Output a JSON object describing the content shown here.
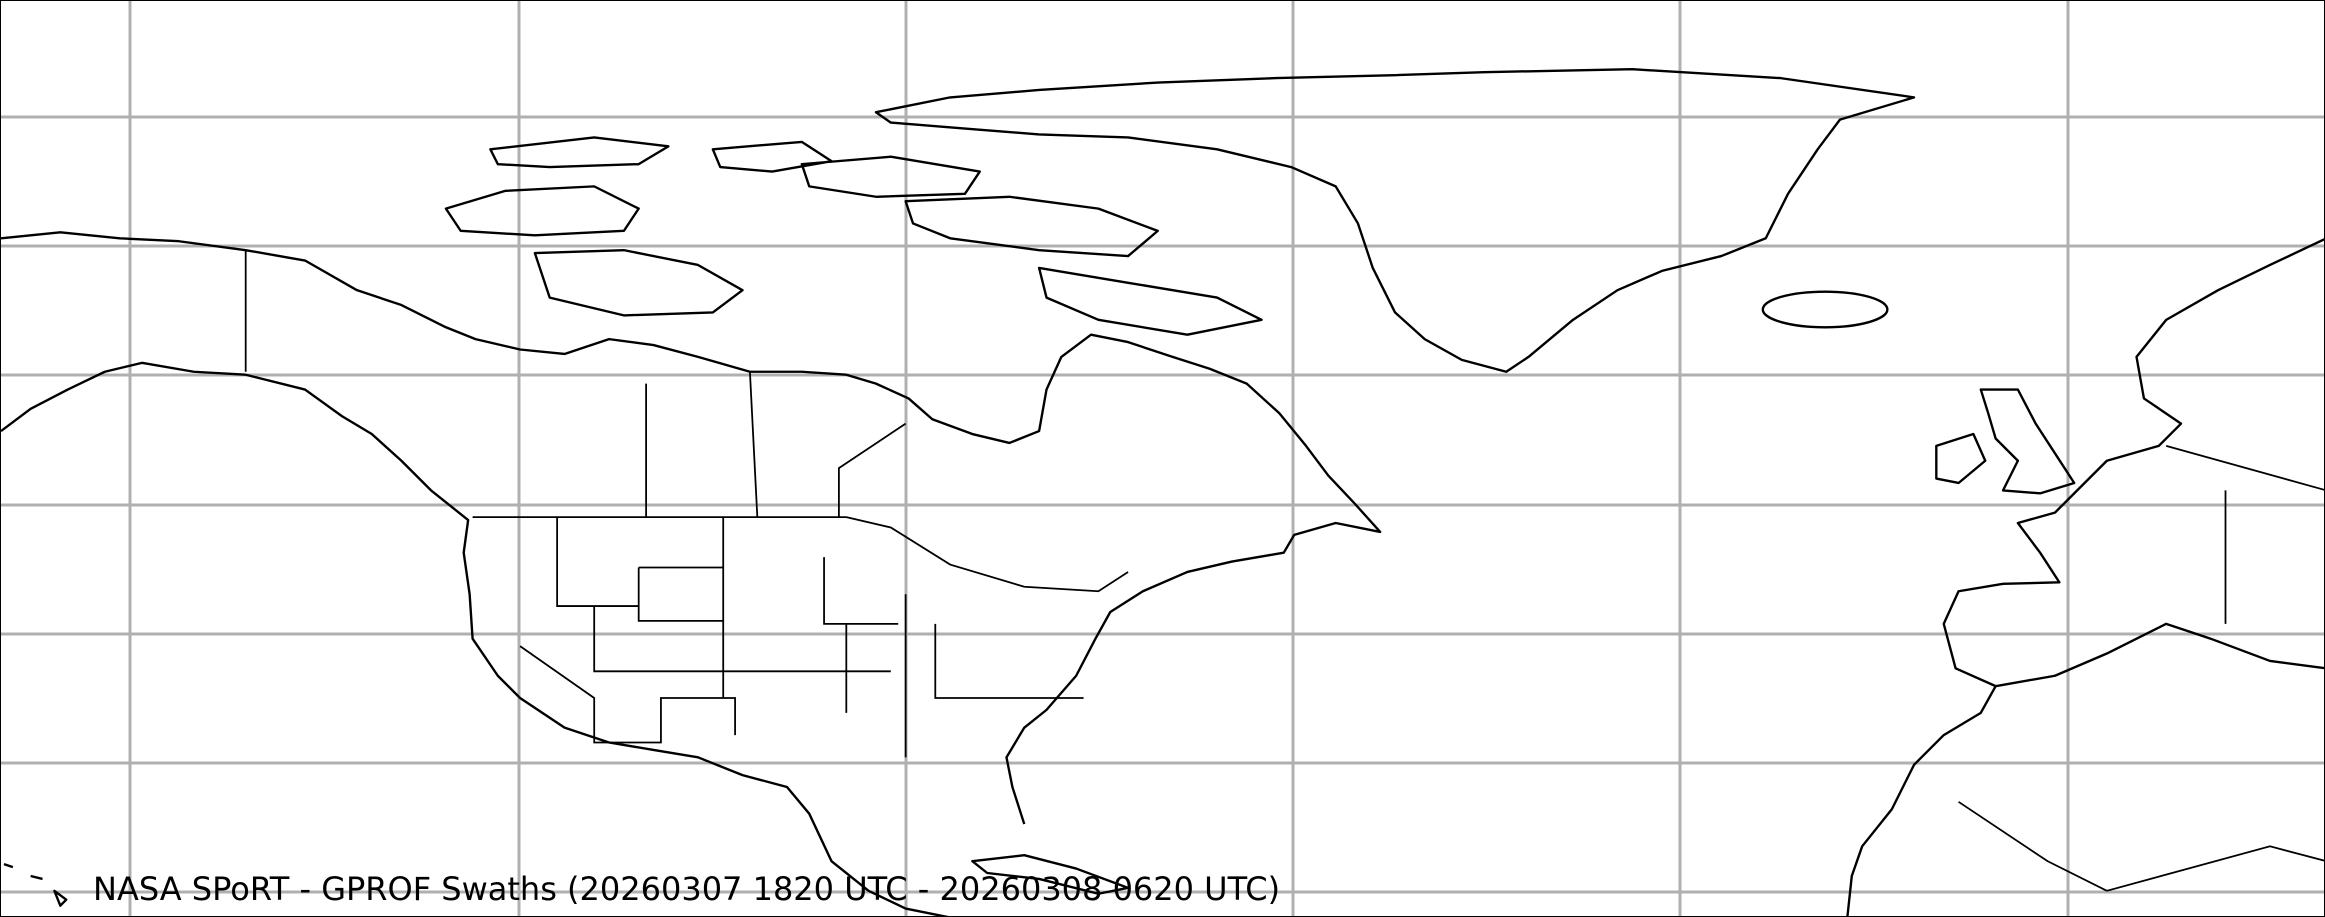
{
  "map": {
    "title": "NASA SPoRT - GPROF Swaths (20260307 1820 UTC - 20260308 0620 UTC)",
    "gridline_color": "#b0b0b0",
    "coastline_color": "#000000",
    "background_color": "#ffffff",
    "regions_shown": [
      "North America",
      "Greenland",
      "Iceland",
      "Europe",
      "North Africa"
    ]
  }
}
